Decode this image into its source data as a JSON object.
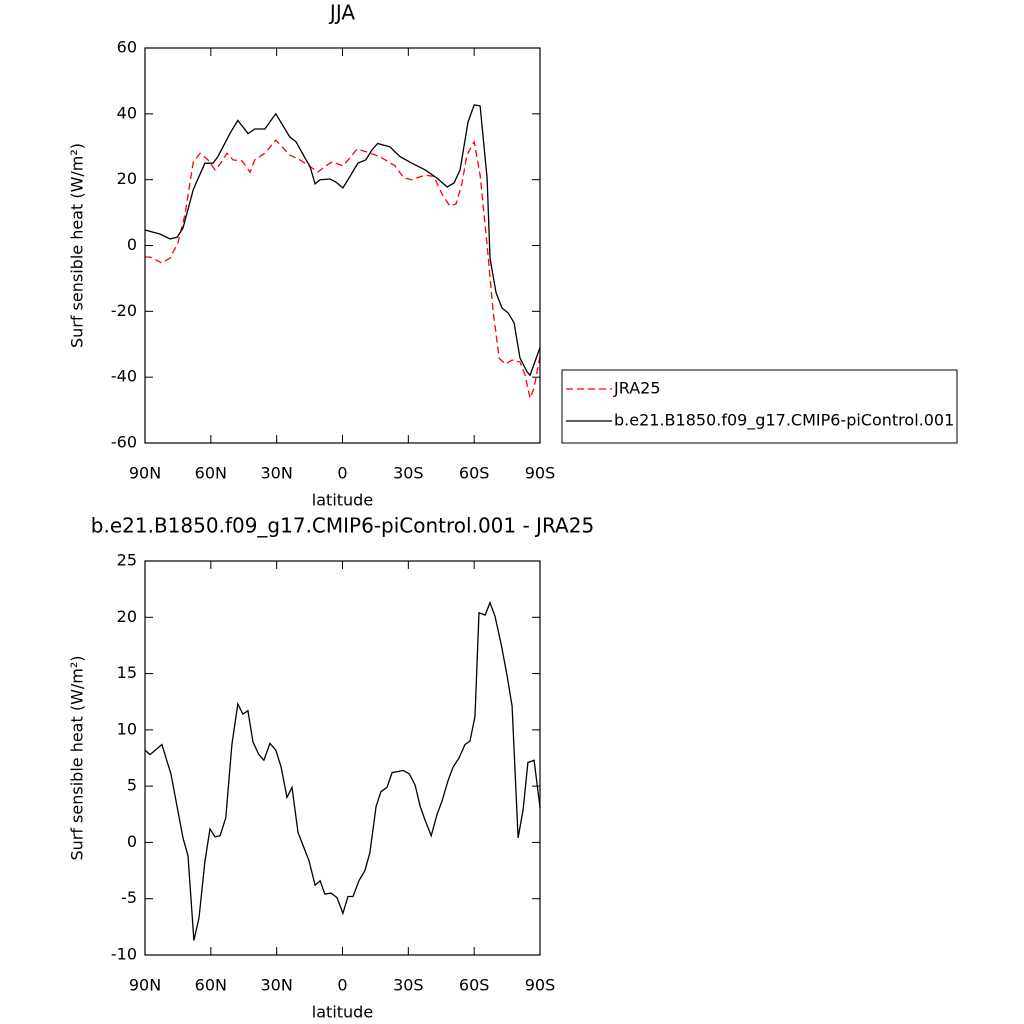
{
  "chart_data": [
    {
      "type": "line",
      "title": "JJA",
      "xlabel": "latitude",
      "ylabel": "Surf sensible heat (W/m²)",
      "xlim": [
        90,
        -90
      ],
      "xticks": [
        {
          "value": 90,
          "label": "90N"
        },
        {
          "value": 60,
          "label": "60N"
        },
        {
          "value": 30,
          "label": "30N"
        },
        0,
        {
          "value": -30,
          "label": "30S"
        },
        {
          "value": -60,
          "label": "60S"
        },
        {
          "value": -90,
          "label": "90S"
        }
      ],
      "ylim": [
        -60,
        60
      ],
      "yticks": [
        -60,
        -40,
        -20,
        0,
        20,
        40,
        60
      ],
      "legend": "right",
      "series": [
        {
          "name": "JRA25",
          "color": "#ff0000",
          "dashed": true,
          "x": [
            90,
            87.7,
            82.3,
            78.6,
            75,
            71.8,
            68,
            64.9,
            61.3,
            58.1,
            55.8,
            52.6,
            49.9,
            45.8,
            42.1,
            40,
            35.4,
            30.4,
            24,
            19.4,
            14.8,
            11.2,
            8,
            4.8,
            -0.2,
            -3.4,
            -6.6,
            -11.1,
            -17,
            -23.9,
            -28,
            -31.6,
            -37.6,
            -41.6,
            -45.3,
            -48.9,
            -51.7,
            -54.4,
            -56.7,
            -60,
            -62.7,
            -65.9,
            -68.6,
            -71.4,
            -74.1,
            -77.3,
            -80.9,
            -83.2,
            -85.5,
            -87.3,
            -90
          ],
          "values": [
            -3.5,
            -3.5,
            -5.3,
            -3.8,
            0.8,
            9.3,
            25.4,
            28,
            26,
            23,
            24.8,
            28,
            26,
            25.7,
            22.3,
            26,
            28,
            32,
            27.5,
            26,
            24,
            22.3,
            24,
            25.4,
            24.2,
            26.6,
            29.3,
            28.4,
            27,
            24.2,
            20.5,
            20,
            21.4,
            21,
            15.7,
            12,
            12.6,
            18.7,
            27.5,
            31.5,
            21.4,
            0.2,
            -19.6,
            -34.2,
            -36,
            -34.8,
            -35.4,
            -39.4,
            -46.4,
            -43.3,
            -33.6
          ]
        },
        {
          "name": "b.e21.B1850.f09_g17.CMIP6-piControl.001",
          "color": "#000000",
          "dashed": false,
          "x": [
            90,
            83.2,
            78.6,
            75.4,
            72.7,
            68,
            62.7,
            59,
            56.8,
            51.3,
            47.7,
            43,
            40,
            35.4,
            30.4,
            24,
            21.2,
            16.6,
            14.8,
            12.5,
            10.2,
            5.7,
            3,
            -0.2,
            -3.4,
            -7,
            -10.6,
            -13.4,
            -16,
            -21.6,
            -26.2,
            -31.6,
            -37.6,
            -43,
            -47.7,
            -50.8,
            -53.6,
            -57.2,
            -60,
            -62.7,
            -65.9,
            -67.2,
            -70,
            -72.7,
            -75.5,
            -78.2,
            -80.9,
            -84.1,
            -85.5,
            -90
          ],
          "values": [
            4.7,
            3.5,
            2,
            2.5,
            5.3,
            17,
            25,
            25,
            27,
            34,
            38,
            34,
            35.4,
            35.4,
            40,
            33,
            31.5,
            26,
            24,
            18.7,
            20,
            20.2,
            19.3,
            17.5,
            21,
            25,
            26,
            29,
            31,
            30,
            27,
            25,
            23,
            20.5,
            17.8,
            19,
            23,
            37.5,
            42.7,
            42.4,
            20.5,
            -3.8,
            -14.4,
            -19,
            -20.5,
            -23.5,
            -34.2,
            -38.4,
            -39.4,
            -31
          ]
        }
      ]
    },
    {
      "type": "line",
      "title": "b.e21.B1850.f09_g17.CMIP6-piControl.001 - JRA25",
      "xlabel": "latitude",
      "ylabel": "Surf sensible heat (W/m²)",
      "xlim": [
        90,
        -90
      ],
      "xticks": [
        {
          "value": 90,
          "label": "90N"
        },
        {
          "value": 60,
          "label": "60N"
        },
        {
          "value": 30,
          "label": "30N"
        },
        0,
        {
          "value": -30,
          "label": "30S"
        },
        {
          "value": -60,
          "label": "60S"
        },
        {
          "value": -90,
          "label": "90S"
        }
      ],
      "ylim": [
        -10,
        25
      ],
      "yticks": [
        -10,
        -5,
        0,
        5,
        10,
        15,
        20,
        25
      ],
      "series": [
        {
          "color": "#000000",
          "dashed": false,
          "x": [
            90,
            87.7,
            82.3,
            78.2,
            72.7,
            70.4,
            67.7,
            65.4,
            62.7,
            60.4,
            58.1,
            55.8,
            53.2,
            50.4,
            47.7,
            45.4,
            43.1,
            40.8,
            38.1,
            35.8,
            33.1,
            30.4,
            28,
            25.3,
            23,
            20.3,
            17.5,
            15.3,
            12.5,
            10.2,
            8,
            5.2,
            2.5,
            -0.2,
            -2.5,
            -4.8,
            -7.5,
            -10.2,
            -12.5,
            -15.3,
            -17.5,
            -20.3,
            -22.6,
            -25.3,
            -27.6,
            -30.4,
            -33.1,
            -35.4,
            -37.6,
            -40.4,
            -43.1,
            -45.4,
            -48.1,
            -50.4,
            -53.1,
            -55.8,
            -58.1,
            -60.4,
            -62.2,
            -65,
            -67.2,
            -69.5,
            -72.3,
            -75,
            -77.3,
            -80,
            -82.3,
            -84.5,
            -87.3,
            -90
          ],
          "values": [
            8.2,
            7.8,
            8.7,
            6.1,
            0.4,
            -1.2,
            -8.7,
            -6.7,
            -1.7,
            1.2,
            0.5,
            0.6,
            2.2,
            8.7,
            12.3,
            11.4,
            11.7,
            8.9,
            7.8,
            7.3,
            8.8,
            8.2,
            6.7,
            4,
            4.9,
            0.9,
            -0.5,
            -1.6,
            -3.8,
            -3.4,
            -4.6,
            -4.5,
            -4.9,
            -6.3,
            -4.8,
            -4.8,
            -3.4,
            -2.5,
            -0.9,
            3.2,
            4.5,
            4.9,
            6.2,
            6.3,
            6.4,
            6.1,
            5.1,
            3.2,
            2,
            0.6,
            2.5,
            3.7,
            5.5,
            6.7,
            7.5,
            8.7,
            9,
            11.2,
            20.4,
            20.2,
            21.3,
            20.1,
            17.6,
            14.8,
            12.1,
            0.4,
            2.9,
            7.1,
            7.3,
            3.1
          ]
        }
      ]
    }
  ]
}
